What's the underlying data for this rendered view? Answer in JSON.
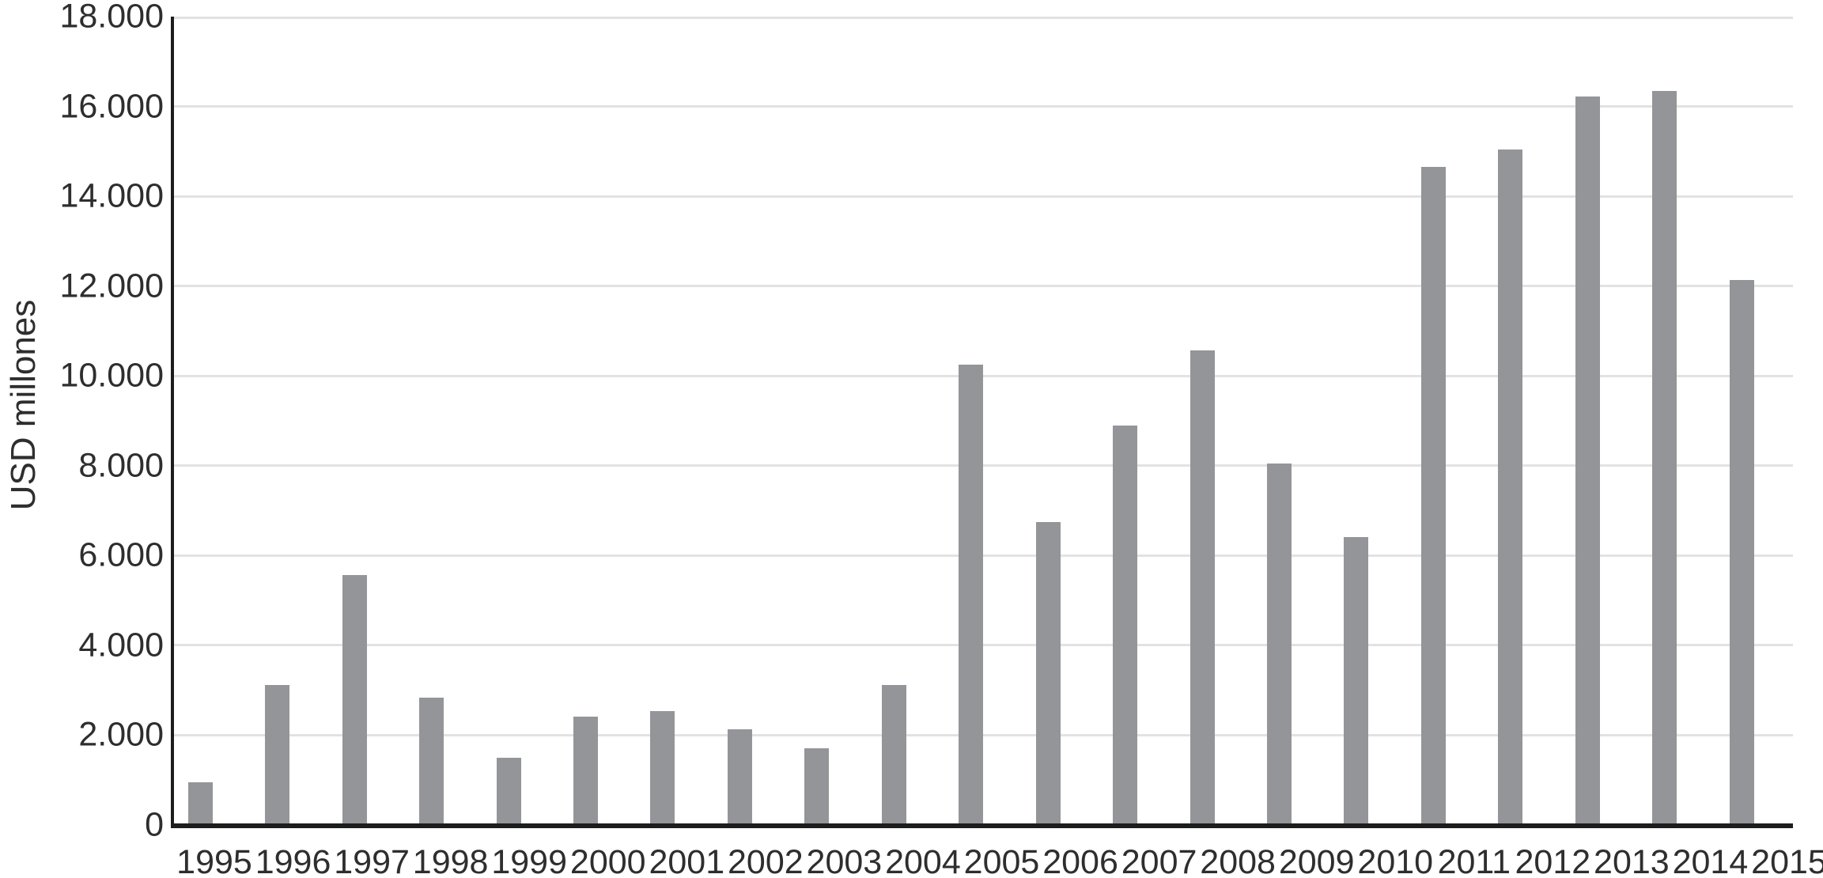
{
  "chart_data": {
    "type": "bar",
    "title": "",
    "xlabel": "",
    "ylabel": "USD millones",
    "categories": [
      "1995",
      "1996",
      "1997",
      "1998",
      "1999",
      "2000",
      "2001",
      "2002",
      "2003",
      "2004",
      "2005",
      "2006",
      "2007",
      "2008",
      "2009",
      "2010",
      "2011",
      "2012",
      "2013",
      "2014",
      "2015"
    ],
    "values": [
      950,
      3110,
      5560,
      2830,
      1490,
      2420,
      2530,
      2130,
      1700,
      3120,
      10250,
      6750,
      8890,
      10570,
      8050,
      6420,
      14650,
      15050,
      16230,
      16340,
      12130
    ],
    "ylim": [
      0,
      18000
    ],
    "y_tick_step": 2000,
    "y_tick_labels": [
      "0",
      "2.000",
      "4.000",
      "6.000",
      "8.000",
      "10.000",
      "12.000",
      "14.000",
      "16.000",
      "18.000"
    ],
    "grid": true,
    "legend": "none",
    "colors": {
      "bar": "#939598",
      "gridline": "#e2e2e2",
      "axis": "#1d1d1d",
      "text": "#2e2e2e"
    }
  }
}
